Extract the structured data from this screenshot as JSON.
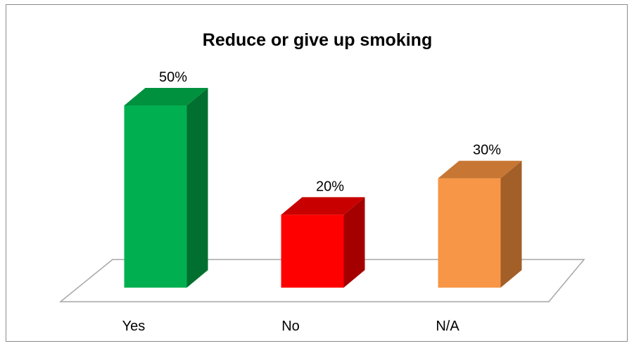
{
  "chart_data": {
    "type": "bar",
    "title": "Reduce or give up smoking",
    "categories": [
      "Yes",
      "No",
      "N/A"
    ],
    "values": [
      50,
      20,
      30
    ],
    "value_labels": [
      "50%",
      "20%",
      "30%"
    ],
    "ylim": [
      0,
      50
    ],
    "grid": false,
    "legend": "none",
    "three_d": true,
    "colors": [
      {
        "front": "#00b050",
        "side": "#006f30",
        "top": "#00913f"
      },
      {
        "front": "#ff0000",
        "side": "#a50000",
        "top": "#c80000"
      },
      {
        "front": "#f79646",
        "side": "#a35f28",
        "top": "#c77633"
      }
    ]
  }
}
